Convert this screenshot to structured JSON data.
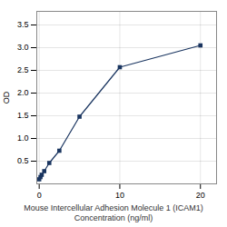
{
  "chart_data": {
    "type": "line",
    "x": [
      0.0,
      0.156,
      0.313,
      0.625,
      1.25,
      2.5,
      5.0,
      10.0,
      20.0
    ],
    "values": [
      0.1,
      0.15,
      0.2,
      0.28,
      0.46,
      0.73,
      1.48,
      2.57,
      3.05
    ],
    "x_label": [
      "Mouse Intercellular Adhesion Molecule 1 (ICAM1)",
      "Concentration (ng/ml)"
    ],
    "y_label": "OD",
    "xlim": [
      -0.3,
      22
    ],
    "xticks": [
      0,
      10,
      20
    ],
    "ylim": [
      0,
      3.8
    ],
    "yticks": [
      0.5,
      {
        "value": 1.0,
        "label": "1.0"
      },
      1.5,
      {
        "value": 2.0,
        "label": "2.0"
      },
      2.5,
      {
        "value": 3.0,
        "label": "3.0"
      },
      3.5
    ],
    "color": "#1a3560",
    "marker": "square",
    "grid": true
  }
}
